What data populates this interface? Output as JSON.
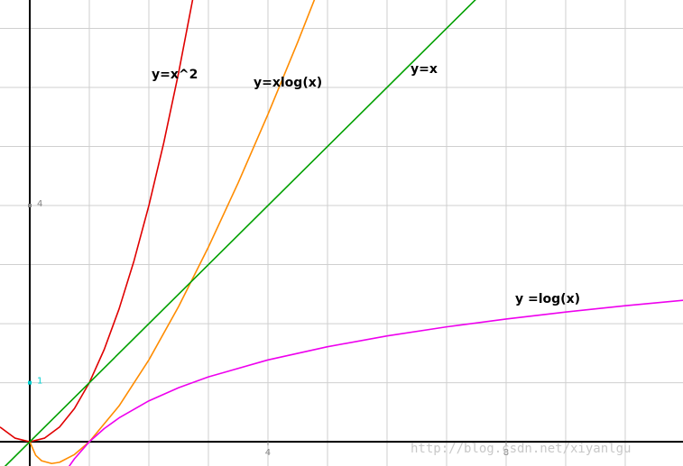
{
  "chart_data": {
    "type": "line",
    "xlim": [
      -0.5,
      10.97
    ],
    "ylim": [
      -0.41,
      7.48
    ],
    "xticks": [
      4,
      8
    ],
    "yticks": [
      1,
      4
    ],
    "ytick_colors": [
      "#00d0d0",
      "#888888"
    ],
    "xgrid": [
      1,
      2,
      3,
      4,
      5,
      6,
      7,
      8,
      9,
      10
    ],
    "ygrid": [
      1,
      2,
      3,
      4,
      5,
      6,
      7
    ],
    "grid": true,
    "series": [
      {
        "name": "y=x^2",
        "color": "#e00000",
        "x": [
          -0.5,
          -0.25,
          0,
          0.25,
          0.5,
          0.75,
          1,
          1.25,
          1.5,
          1.75,
          2,
          2.25,
          2.5,
          2.75
        ],
        "values": [
          0.25,
          0.0625,
          0,
          0.0625,
          0.25,
          0.5625,
          1,
          1.5625,
          2.25,
          3.0625,
          4,
          5.0625,
          6.25,
          7.5625
        ]
      },
      {
        "name": "y=xlog(x)",
        "color": "#ff8c00",
        "x": [
          0,
          0.1,
          0.2,
          0.368,
          0.5,
          0.75,
          1,
          1.5,
          2,
          2.5,
          3,
          3.5,
          4,
          4.5,
          5
        ],
        "values": [
          0,
          -0.23,
          -0.322,
          -0.368,
          -0.347,
          -0.216,
          0,
          0.608,
          1.386,
          2.291,
          3.296,
          4.385,
          5.545,
          6.768,
          8.047
        ]
      },
      {
        "name": "y=x",
        "color": "#00a000",
        "x": [
          -0.5,
          7.5
        ],
        "values": [
          -0.5,
          7.5
        ]
      },
      {
        "name": "y =log(x)",
        "color": "#ee00ee",
        "x": [
          0.65,
          0.75,
          1,
          1.25,
          1.5,
          2,
          2.5,
          3,
          4,
          5,
          6,
          7,
          8,
          9,
          10,
          11
        ],
        "values": [
          -0.431,
          -0.288,
          0,
          0.223,
          0.405,
          0.693,
          0.916,
          1.099,
          1.386,
          1.609,
          1.792,
          1.946,
          2.079,
          2.197,
          2.303,
          2.398
        ]
      }
    ],
    "watermark": "http://blog.csdn.net/xiyanlgu"
  }
}
